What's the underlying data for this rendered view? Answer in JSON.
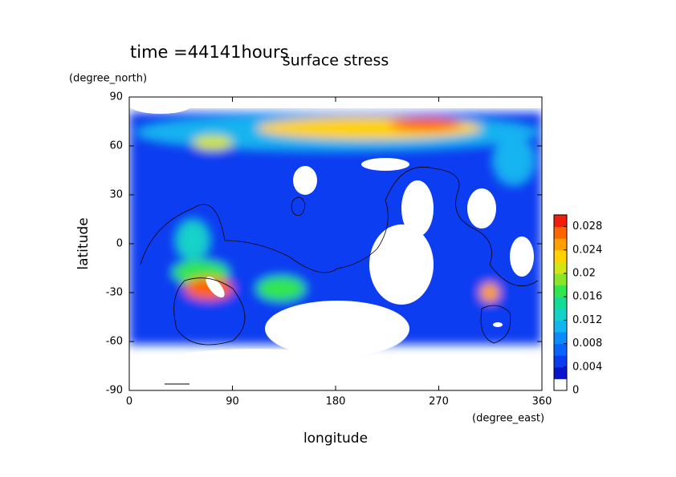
{
  "chart_data": {
    "type": "contour",
    "title": "surface stress",
    "annotation": "time =44141hours",
    "x_label": "longitude",
    "y_label": "latitude",
    "x_unit": "(degree_east)",
    "y_unit": "(degree_north)",
    "xlim": [
      0,
      360
    ],
    "xticks": [
      0,
      90,
      180,
      270,
      360
    ],
    "ylim": [
      -90,
      90
    ],
    "yticks": [
      -90,
      -60,
      -30,
      0,
      30,
      60,
      90
    ],
    "colorbar": {
      "clim": [
        0,
        0.03
      ],
      "ticks": [
        0,
        0.004,
        0.008,
        0.012,
        0.016,
        0.02,
        0.024,
        0.028
      ],
      "colors": [
        "#ffffff",
        "#0a14c8",
        "#0a3cf0",
        "#0a64ff",
        "#0a8cff",
        "#14b4f0",
        "#14d2c8",
        "#14dc96",
        "#32e650",
        "#8ce628",
        "#d2e614",
        "#ffd200",
        "#ffa000",
        "#ff6400",
        "#f01e0a"
      ]
    }
  }
}
